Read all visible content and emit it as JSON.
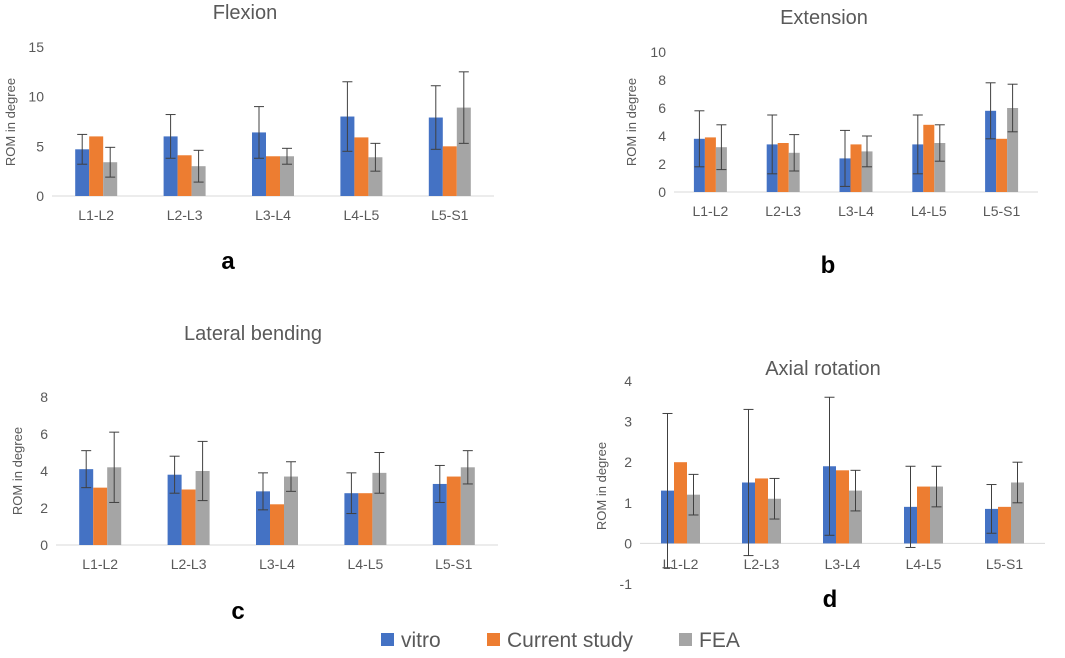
{
  "colors": {
    "vitro": "#4472C4",
    "current": "#ED7D31",
    "fea": "#A5A5A5",
    "axis": "#D9D9D9",
    "err": "#404040"
  },
  "legend": [
    {
      "key": "vitro",
      "label": "vitro",
      "color": "#4472C4"
    },
    {
      "key": "current",
      "label": "Current study",
      "color": "#ED7D31"
    },
    {
      "key": "fea",
      "label": "FEA",
      "color": "#A5A5A5"
    }
  ],
  "chart_data": [
    {
      "type": "bar",
      "panel_label": "a",
      "title": "Flexion",
      "ylabel": "ROM in degree",
      "categories": [
        "L1-L2",
        "L2-L3",
        "L3-L4",
        "L4-L5",
        "L5-S1"
      ],
      "ylim": [
        0,
        15
      ],
      "yticks": [
        "0",
        "5",
        "10",
        "15"
      ],
      "series": [
        {
          "name": "vitro",
          "values": [
            4.7,
            6.0,
            6.4,
            8.0,
            7.9
          ],
          "err": [
            1.5,
            2.2,
            2.6,
            3.5,
            3.2
          ]
        },
        {
          "name": "Current study",
          "values": [
            6.0,
            4.1,
            4.0,
            5.9,
            5.0
          ],
          "err": null
        },
        {
          "name": "FEA",
          "values": [
            3.4,
            3.0,
            4.0,
            3.9,
            8.9
          ],
          "err": [
            1.5,
            1.6,
            0.8,
            1.4,
            3.6
          ]
        }
      ]
    },
    {
      "type": "bar",
      "panel_label": "b",
      "title": "Extension",
      "ylabel": "ROM in degree",
      "categories": [
        "L1-L2",
        "L2-L3",
        "L3-L4",
        "L4-L5",
        "L5-S1"
      ],
      "ylim": [
        0,
        10
      ],
      "yticks": [
        "0",
        "2",
        "4",
        "6",
        "8",
        "10"
      ],
      "series": [
        {
          "name": "vitro",
          "values": [
            3.8,
            3.4,
            2.4,
            3.4,
            5.8
          ],
          "err": [
            2.0,
            2.1,
            2.0,
            2.1,
            2.0
          ]
        },
        {
          "name": "Current study",
          "values": [
            3.9,
            3.5,
            3.4,
            4.8,
            3.8
          ],
          "err": null
        },
        {
          "name": "FEA",
          "values": [
            3.2,
            2.8,
            2.9,
            3.5,
            6.0
          ],
          "err": [
            1.6,
            1.3,
            1.1,
            1.3,
            1.7
          ]
        }
      ]
    },
    {
      "type": "bar",
      "panel_label": "c",
      "title": "Lateral bending",
      "ylabel": "ROM in degree",
      "categories": [
        "L1-L2",
        "L2-L3",
        "L3-L4",
        "L4-L5",
        "L5-S1"
      ],
      "ylim": [
        0,
        8
      ],
      "yticks": [
        "0",
        "2",
        "4",
        "6",
        "8"
      ],
      "series": [
        {
          "name": "vitro",
          "values": [
            4.1,
            3.8,
            2.9,
            2.8,
            3.3
          ],
          "err": [
            1.0,
            1.0,
            1.0,
            1.1,
            1.0
          ]
        },
        {
          "name": "Current study",
          "values": [
            3.1,
            3.0,
            2.2,
            2.8,
            3.7
          ],
          "err": null
        },
        {
          "name": "FEA",
          "values": [
            4.2,
            4.0,
            3.7,
            3.9,
            4.2
          ],
          "err": [
            1.9,
            1.6,
            0.8,
            1.1,
            0.9
          ]
        }
      ]
    },
    {
      "type": "bar",
      "panel_label": "d",
      "title": "Axial rotation",
      "ylabel": "ROM in degree",
      "categories": [
        "L1-L2",
        "L2-L3",
        "L3-L4",
        "L4-L5",
        "L5-S1"
      ],
      "ylim": [
        -1,
        4
      ],
      "yticks": [
        "-1",
        "0",
        "1",
        "2",
        "3",
        "4"
      ],
      "series": [
        {
          "name": "vitro",
          "values": [
            1.3,
            1.5,
            1.9,
            0.9,
            0.85
          ],
          "err": [
            1.9,
            1.8,
            1.7,
            1.0,
            0.6
          ]
        },
        {
          "name": "Current study",
          "values": [
            2.0,
            1.6,
            1.8,
            1.4,
            0.9
          ],
          "err": null
        },
        {
          "name": "FEA",
          "values": [
            1.2,
            1.1,
            1.3,
            1.4,
            1.5
          ],
          "err": [
            0.5,
            0.5,
            0.5,
            0.5,
            0.5
          ]
        }
      ]
    }
  ]
}
